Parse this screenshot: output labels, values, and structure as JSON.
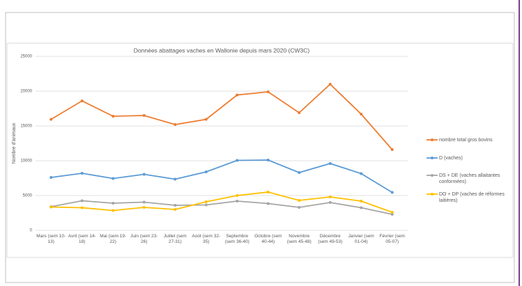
{
  "chart_data": {
    "type": "line",
    "title": "Données abattages vaches en Wallonie depuis mars 2020 (CW3C)",
    "y_label": "Nombre d'animaux",
    "categories": [
      "Mars (sem 10-13)",
      "Avril (sem 14-18)",
      "Mai (sem 19-22)",
      "Juin (sem 23-26)",
      "Juillet (sem 27-31)",
      "Août (sem 32-35)",
      "Septembre (sem 36-40)",
      "Octobre (sem 40-44)",
      "Novembre (sem 45-48)",
      "Décembre (sem 49-53)",
      "Janvier (sem 01-04)",
      "Février (sem 05-07)"
    ],
    "series": [
      {
        "name": "nombre total gros bovins",
        "color": "#ed7d31",
        "values": [
          15950,
          18600,
          16400,
          16500,
          15200,
          15950,
          19450,
          19900,
          16900,
          21000,
          16700,
          11600
        ]
      },
      {
        "name": "D (vaches)",
        "color": "#5b9bd5",
        "values": [
          7600,
          8200,
          7450,
          8050,
          7350,
          8400,
          10050,
          10100,
          8300,
          9600,
          8150,
          5450
        ]
      },
      {
        "name": "DS + DE (vaches allaitantes conformées)",
        "color": "#a5a5a5",
        "values": [
          3400,
          4250,
          3900,
          4050,
          3600,
          3650,
          4200,
          3850,
          3300,
          4000,
          3250,
          2300
        ]
      },
      {
        "name": "DO + DP (vaches de réformes laitières)",
        "color": "#ffc000",
        "values": [
          3350,
          3250,
          2850,
          3300,
          3000,
          4100,
          5000,
          5500,
          4300,
          4800,
          4200,
          2600
        ]
      }
    ],
    "ylim": [
      0,
      25000
    ],
    "yticks": [
      0,
      5000,
      10000,
      15000,
      20000,
      25000
    ],
    "grid": true,
    "legend": "right"
  }
}
